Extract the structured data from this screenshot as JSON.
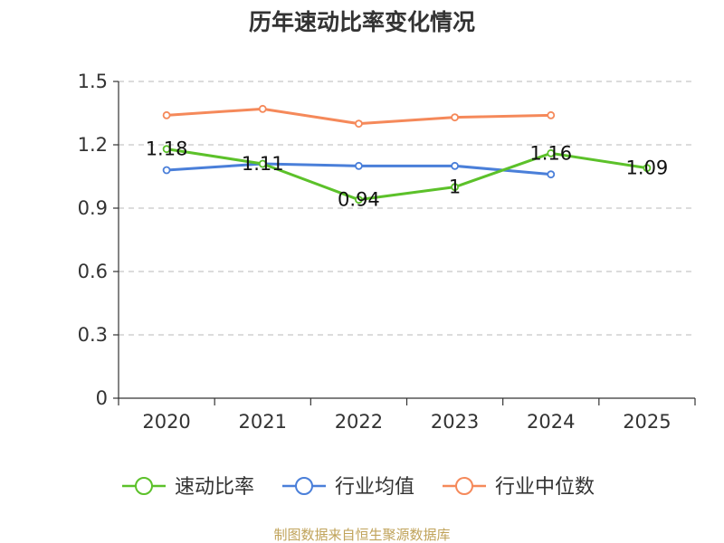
{
  "chart_data": {
    "type": "line",
    "title": "历年速动比率变化情况",
    "categories": [
      "2020",
      "2021",
      "2022",
      "2023",
      "2024",
      "2025"
    ],
    "ylim": [
      0,
      1.5
    ],
    "yticks": [
      0,
      0.3,
      0.6,
      0.9,
      1.2,
      1.5
    ],
    "ytick_labels": [
      "0",
      "0.3",
      "0.6",
      "0.9",
      "1.2",
      "1.5"
    ],
    "grid": true,
    "legend_position": "bottom",
    "series": [
      {
        "name": "速动比率",
        "color": "#5cc12a",
        "values": [
          1.18,
          1.11,
          0.94,
          1.0,
          1.16,
          1.09
        ],
        "labels": [
          "1.18",
          "1.11",
          "0.94",
          "1",
          "1.16",
          "1.09"
        ]
      },
      {
        "name": "行业均值",
        "color": "#4a7fd9",
        "values": [
          1.08,
          1.11,
          1.1,
          1.1,
          1.06,
          null
        ]
      },
      {
        "name": "行业中位数",
        "color": "#f5895a",
        "values": [
          1.34,
          1.37,
          1.3,
          1.33,
          1.34,
          null
        ]
      }
    ]
  },
  "footer": "制图数据来自恒生聚源数据库"
}
